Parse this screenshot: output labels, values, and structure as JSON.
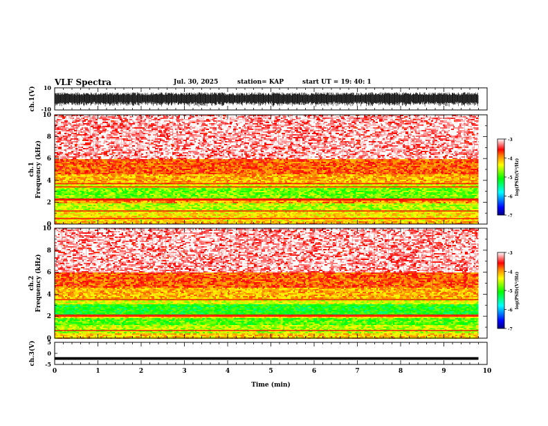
{
  "header": {
    "title": "VLF Spectra",
    "date": "Jul. 30, 2025",
    "station": "station= KAP",
    "start": "start UT =  19: 40: 1"
  },
  "chart_data": [
    {
      "type": "line",
      "panel": "ch1-waveform",
      "ylabel": "ch.1(V)",
      "ylim": [
        -10,
        10
      ],
      "ytick_labels": [
        "10",
        "-10"
      ],
      "xlim": [
        0,
        10
      ],
      "signal": {
        "amplitude_typical": 6,
        "amplitude_max": 10,
        "end_min": 9.8
      }
    },
    {
      "type": "heatmap",
      "panel": "ch1-spectrogram",
      "ylabel": "ch.1\nFrequency (kHz)",
      "ylim": [
        0,
        10
      ],
      "yticks": [
        0,
        2,
        4,
        6,
        8,
        10
      ],
      "ytick_labels": [
        "0",
        "2",
        "4",
        "6",
        "8",
        "10"
      ],
      "xlim": [
        0,
        10
      ],
      "data_end_min": 9.8,
      "colorbar": {
        "label": "log(PSD)(V²/Hz)",
        "range": [
          -7,
          -3
        ],
        "ticks": [
          "-3",
          "-4",
          "-5",
          "-6",
          "-7"
        ]
      },
      "band_levels": [
        {
          "f0": 0.0,
          "f1": 0.3,
          "level": -4.1
        },
        {
          "f0": 0.3,
          "f1": 1.2,
          "level": -4.3
        },
        {
          "f0": 1.2,
          "f1": 2.0,
          "level": -4.6
        },
        {
          "f0": 2.0,
          "f1": 2.4,
          "level": -4.0
        },
        {
          "f0": 2.4,
          "f1": 3.3,
          "level": -4.8
        },
        {
          "f0": 3.3,
          "f1": 3.7,
          "level": -4.5
        },
        {
          "f0": 3.7,
          "f1": 4.6,
          "level": -4.1
        },
        {
          "f0": 4.6,
          "f1": 6.0,
          "level": -3.8
        },
        {
          "f0": 6.0,
          "f1": 10.0,
          "level": -3.4
        }
      ],
      "lines_khz": [
        0.5,
        1.2,
        2.2,
        2.3,
        3.4,
        3.7
      ]
    },
    {
      "type": "heatmap",
      "panel": "ch2-spectrogram",
      "ylabel": "ch.2\nFrequency (kHz)",
      "ylim": [
        0,
        10
      ],
      "yticks": [
        0,
        2,
        4,
        6,
        8,
        10
      ],
      "ytick_labels": [
        "0",
        "2",
        "4",
        "6",
        "8",
        "10"
      ],
      "xlim": [
        0,
        10
      ],
      "data_end_min": 9.8,
      "colorbar": {
        "label": "log(PSD)(V²/Hz)",
        "range": [
          -7,
          -3
        ],
        "ticks": [
          "-3",
          "-4",
          "-5",
          "-6",
          "-7"
        ]
      },
      "band_levels": [
        {
          "f0": 0.0,
          "f1": 0.5,
          "level": -4.2
        },
        {
          "f0": 0.5,
          "f1": 1.3,
          "level": -4.6
        },
        {
          "f0": 1.3,
          "f1": 1.9,
          "level": -4.9
        },
        {
          "f0": 1.9,
          "f1": 2.2,
          "level": -4.3
        },
        {
          "f0": 2.2,
          "f1": 3.2,
          "level": -5.1
        },
        {
          "f0": 3.2,
          "f1": 3.6,
          "level": -4.5
        },
        {
          "f0": 3.6,
          "f1": 4.6,
          "level": -4.1
        },
        {
          "f0": 4.6,
          "f1": 6.0,
          "level": -3.8
        },
        {
          "f0": 6.0,
          "f1": 10.0,
          "level": -3.4
        }
      ],
      "lines_khz": [
        0.7,
        2.0,
        2.1,
        3.5
      ]
    },
    {
      "type": "line",
      "panel": "ch3-waveform",
      "ylabel": "ch.3(V)",
      "ylim": [
        -5,
        5
      ],
      "ytick_labels": [
        "5",
        "0",
        "-5"
      ],
      "xlim": [
        0,
        10
      ],
      "signal": {
        "center": -2.3,
        "amplitude": 0.6,
        "end_min": 9.8
      }
    }
  ],
  "x_axis": {
    "label": "Time (min)",
    "ticks": [
      "0",
      "1",
      "2",
      "3",
      "4",
      "5",
      "6",
      "7",
      "8",
      "9",
      "10"
    ]
  }
}
